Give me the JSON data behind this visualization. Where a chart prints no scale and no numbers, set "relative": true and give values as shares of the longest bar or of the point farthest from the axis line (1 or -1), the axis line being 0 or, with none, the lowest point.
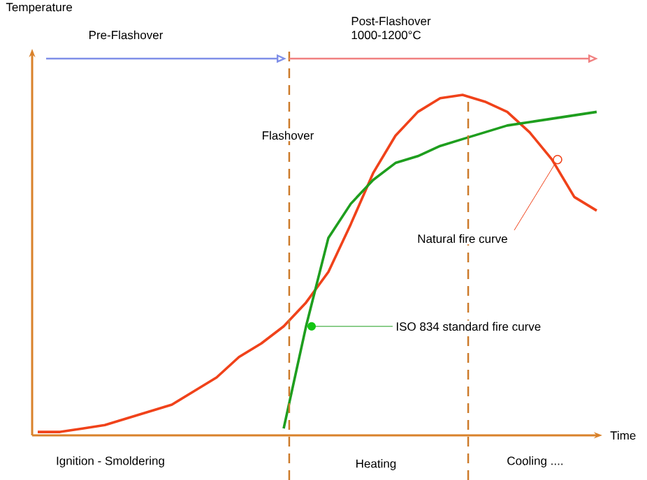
{
  "chart_data": {
    "type": "line",
    "relative": true,
    "xlabel": "Time",
    "categories": [
      null,
      null,
      null,
      null,
      null,
      null,
      null,
      null,
      null,
      null,
      null,
      null,
      null,
      null,
      null,
      null,
      null,
      null,
      null,
      null,
      null,
      null,
      null,
      null,
      null,
      null
    ],
    "series": [
      {
        "color": "#f0421a",
        "values": [
          0.01,
          0.01,
          0.02,
          0.03,
          0.05,
          0.07,
          0.09,
          0.13,
          0.17,
          0.23,
          0.27,
          0.32,
          0.39,
          0.48,
          0.62,
          0.77,
          0.88,
          0.95,
          0.99,
          1,
          0.98,
          0.95,
          0.89,
          0.81,
          0.7,
          0.66
        ]
      },
      {
        "color": "#1e9e1e",
        "values": [
          null,
          null,
          null,
          null,
          null,
          null,
          null,
          null,
          null,
          null,
          null,
          0.02,
          0.32,
          0.58,
          0.68,
          0.75,
          0.8,
          0.82,
          0.85,
          0.87,
          0.89,
          0.91,
          0.92,
          0.93,
          0.94,
          0.95
        ]
      }
    ],
    "annotations": [
      "Temperature",
      "Pre-Flashover",
      "Post-Flashover 1000-1200°C",
      "Flashover",
      "Natural fire curve",
      "ISO 834 standard fire curve",
      "Ignition - Smoldering",
      "Heating",
      "Cooling ...."
    ]
  }
}
